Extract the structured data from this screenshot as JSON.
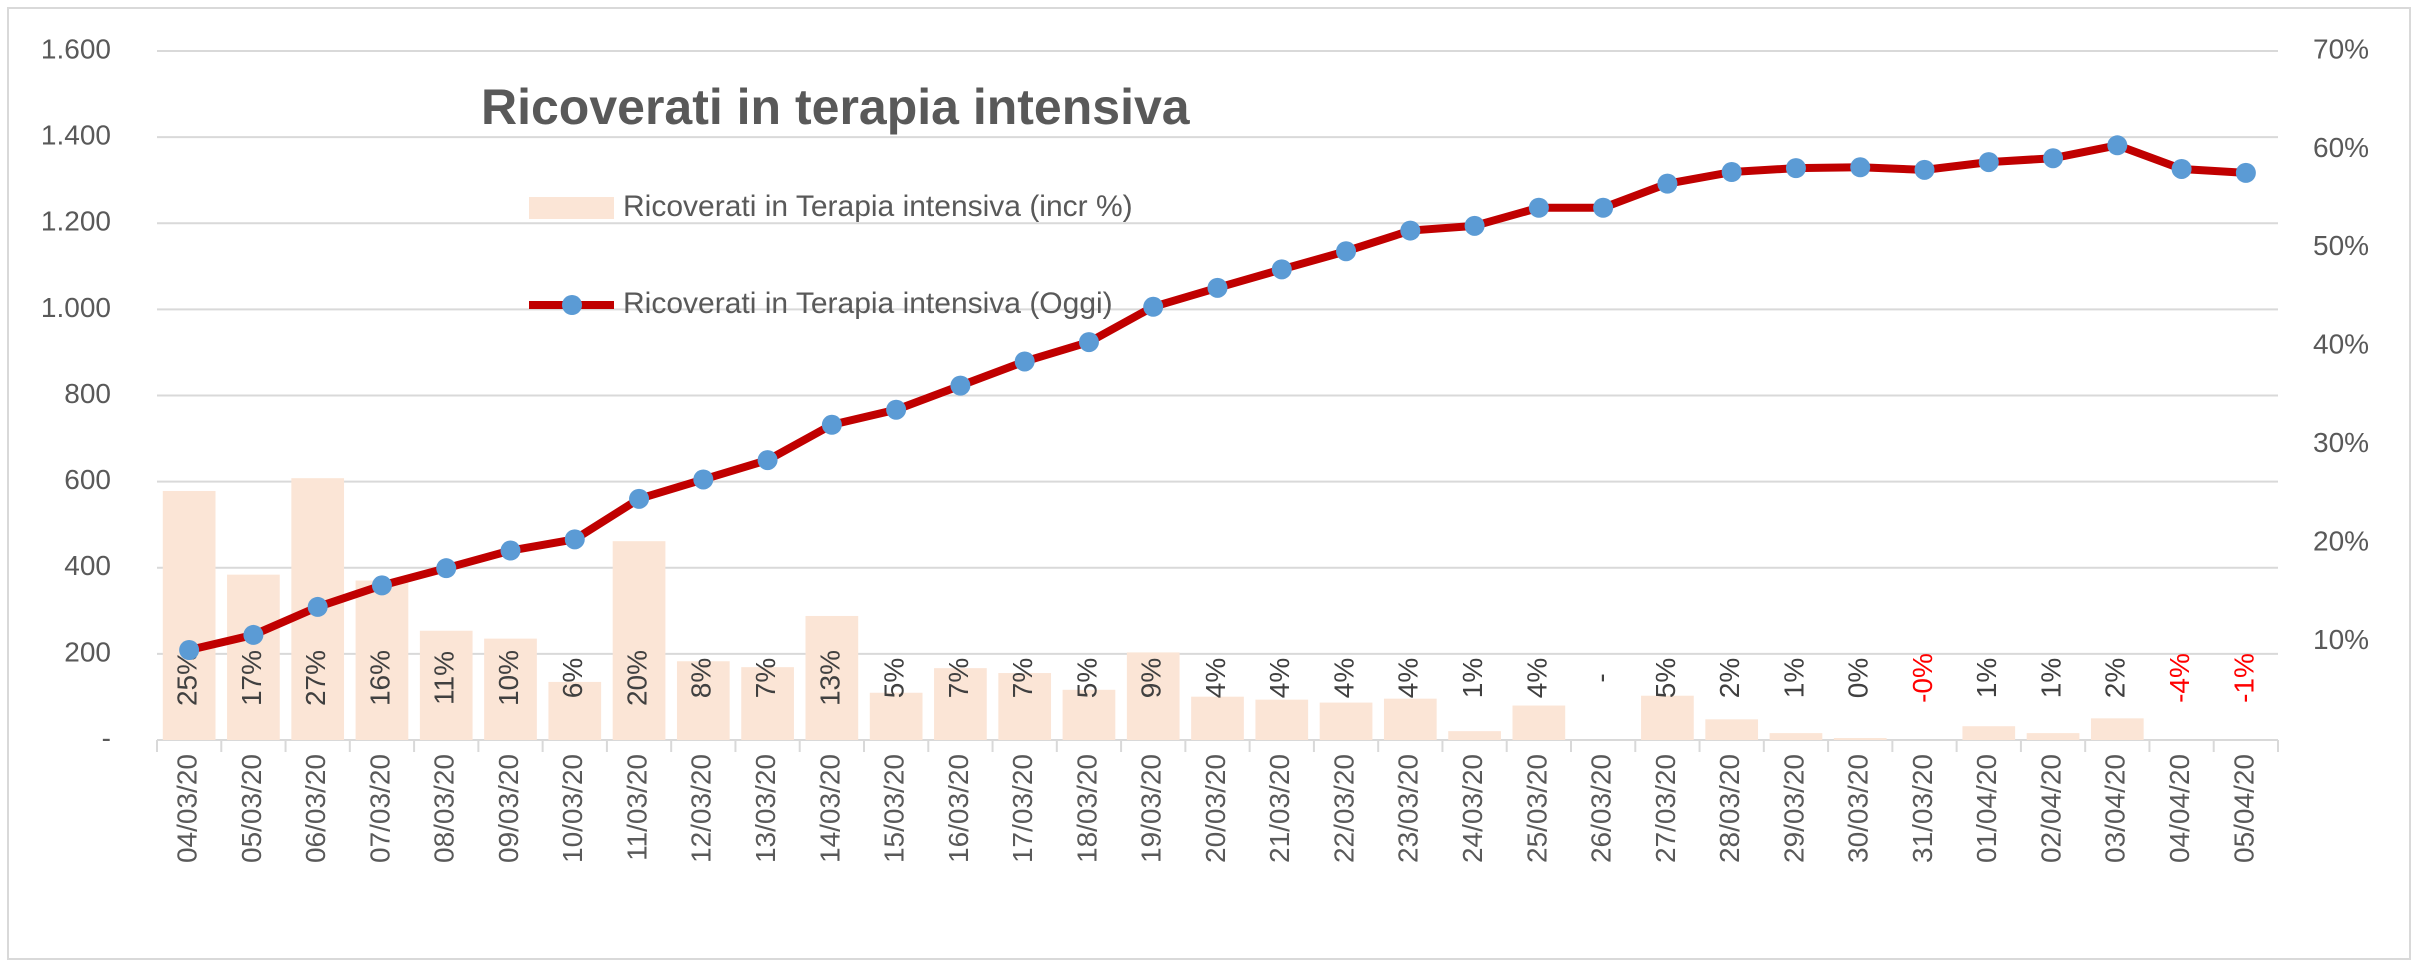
{
  "chart_data": {
    "type": "bar_line",
    "title": "Ricoverati in terapia intensiva",
    "categories": [
      "04/03/20",
      "05/03/20",
      "06/03/20",
      "07/03/20",
      "08/03/20",
      "09/03/20",
      "10/03/20",
      "11/03/20",
      "12/03/20",
      "13/03/20",
      "14/03/20",
      "15/03/20",
      "16/03/20",
      "17/03/20",
      "18/03/20",
      "19/03/20",
      "20/03/20",
      "21/03/20",
      "22/03/20",
      "23/03/20",
      "24/03/20",
      "25/03/20",
      "26/03/20",
      "27/03/20",
      "28/03/20",
      "29/03/20",
      "30/03/20",
      "31/03/20",
      "01/04/20",
      "02/04/20",
      "03/04/20",
      "04/04/20",
      "05/04/20"
    ],
    "series": [
      {
        "name": "Ricoverati in Terapia intensiva (incr %)",
        "type": "bar",
        "axis": "y2",
        "color": "#fbe5d6",
        "values": [
          25.3,
          16.8,
          26.6,
          16.2,
          11.1,
          10.3,
          5.9,
          20.2,
          8.0,
          7.4,
          12.6,
          4.8,
          7.3,
          6.8,
          5.1,
          8.9,
          4.4,
          4.1,
          3.8,
          4.2,
          0.9,
          3.5,
          0,
          4.5,
          2.1,
          0.7,
          0.2,
          -0.4,
          1.4,
          0.7,
          2.2,
          -4.0,
          -0.7
        ],
        "value_labels": [
          "25%",
          "17%",
          "27%",
          "16%",
          "11%",
          "10%",
          "6%",
          "20%",
          "8%",
          "7%",
          "13%",
          "5%",
          "7%",
          "7%",
          "5%",
          "9%",
          "4%",
          "4%",
          "4%",
          "4%",
          "1%",
          "4%",
          "-",
          "5%",
          "2%",
          "1%",
          "0%",
          "-0%",
          "1%",
          "1%",
          "2%",
          "-4%",
          "-1%"
        ]
      },
      {
        "name": "Ricoverati in Terapia intensiva (Oggi)",
        "type": "line",
        "color": "#c00000",
        "marker_color": "#5b9bd5",
        "values": [
          209,
          244,
          309,
          359,
          399,
          440,
          466,
          560,
          605,
          650,
          732,
          767,
          823,
          879,
          924,
          1006,
          1050,
          1093,
          1135,
          1183,
          1194,
          1236,
          1236,
          1292,
          1319,
          1328,
          1330,
          1324,
          1342,
          1351,
          1381,
          1326,
          1317
        ]
      }
    ],
    "ylim": [
      0,
      1600
    ],
    "yticks": [
      {
        "value": 0,
        "label": "-"
      },
      200,
      400,
      600,
      800,
      {
        "value": 1000,
        "label": "1.000"
      },
      {
        "value": 1200,
        "label": "1.200"
      },
      {
        "value": 1400,
        "label": "1.400"
      },
      {
        "value": 1600,
        "label": "1.600"
      }
    ],
    "y2lim": [
      0,
      70
    ],
    "y2ticks": [
      {
        "value": 10,
        "label": "10%"
      },
      {
        "value": 20,
        "label": "20%"
      },
      {
        "value": 30,
        "label": "30%"
      },
      {
        "value": 40,
        "label": "40%"
      },
      {
        "value": 50,
        "label": "50%"
      },
      {
        "value": 60,
        "label": "60%"
      },
      {
        "value": 70,
        "label": "70%"
      }
    ],
    "grid": true,
    "negative_label_color": "#ff0000"
  }
}
